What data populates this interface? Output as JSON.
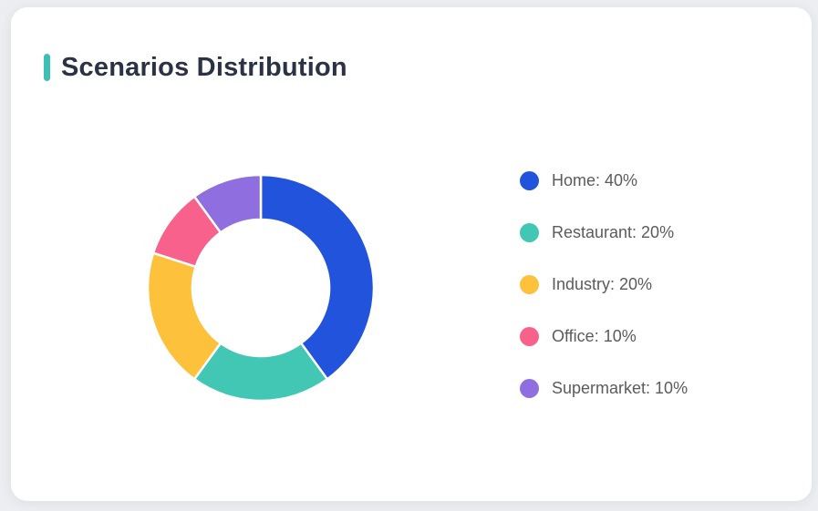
{
  "card": {
    "title": "Scenarios Distribution",
    "accent_color": "#3CC0B4",
    "title_color": "#2B3245",
    "background": "#FFFFFF",
    "page_background": "#ECEEF1"
  },
  "chart_data": {
    "type": "pie",
    "variant": "donut",
    "title": "Scenarios Distribution",
    "unit": "%",
    "legend_position": "right",
    "direction": "clockwise",
    "start_angle_deg": 0,
    "inner_radius_ratio": 0.605,
    "separator_color": "#FFFFFF",
    "legend_label_format": "{label}: {value}%",
    "segments": [
      {
        "label": "Home",
        "value": 40,
        "color": "#2253DC"
      },
      {
        "label": "Restaurant",
        "value": 20,
        "color": "#41C7B4"
      },
      {
        "label": "Industry",
        "value": 20,
        "color": "#FDC13C"
      },
      {
        "label": "Office",
        "value": 10,
        "color": "#F8618C"
      },
      {
        "label": "Supermarket",
        "value": 10,
        "color": "#8F6FE0"
      }
    ]
  }
}
